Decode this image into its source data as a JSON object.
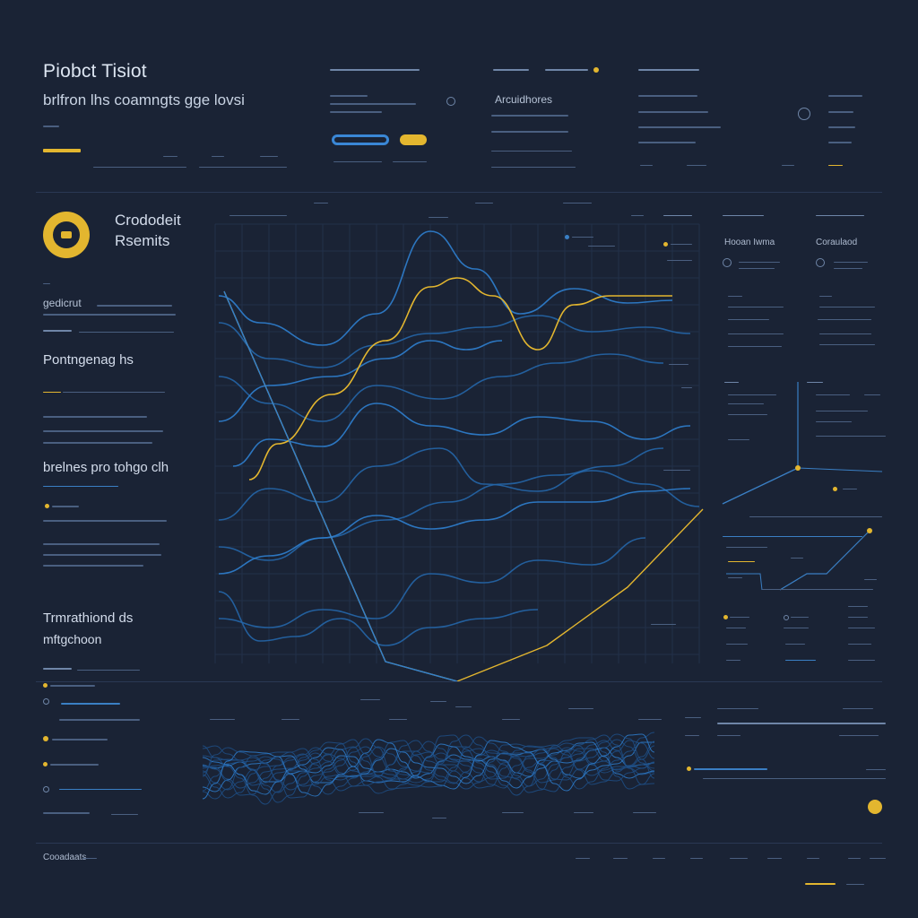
{
  "header": {
    "title": "Piobct Tisiot",
    "subtitle": "brlfron lhs coamngts gge lovsi"
  },
  "top_panel": {
    "heading": "Arcuidhores"
  },
  "brand": {
    "line1": "Crododeit",
    "line2": "Rsemits"
  },
  "sidebar": {
    "section1": "gedicrut",
    "section2": "Pontngenag hs",
    "section3": "brelnes pro tohgo clh",
    "section4_line1": "Trmrathiond ds",
    "section4_line2": "mftgchoon"
  },
  "right_panel": {
    "label_left": "Hooan Iwma",
    "label_right": "Coraulaod"
  },
  "footer": {
    "label": "Cooadaats"
  },
  "colors": {
    "background": "#1a2335",
    "accent_yellow": "#e3b62f",
    "accent_blue": "#3a87d6",
    "muted": "#4a5f80"
  }
}
